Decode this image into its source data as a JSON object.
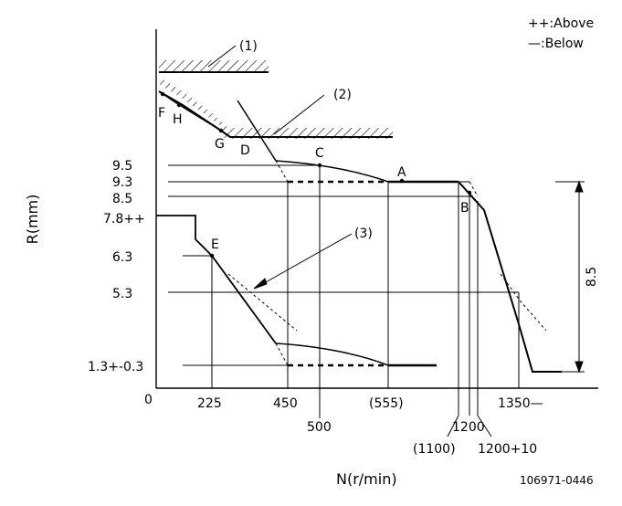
{
  "legend": {
    "above": "++:Above",
    "below": "—:Below"
  },
  "axes": {
    "y_title": "R(mm)",
    "x_title": "N(r/min)",
    "origin": "0"
  },
  "y_ticks": [
    "9.5",
    "9.3",
    "8.5",
    "7.8++",
    "6.3",
    "5.3",
    "1.3+-0.3"
  ],
  "x_ticks": [
    "225",
    "450",
    "500",
    "(555)",
    "1200",
    "(1100)",
    "1200+10",
    "1350—"
  ],
  "point_labels": [
    "F",
    "H",
    "G",
    "D",
    "C",
    "A",
    "B",
    "E"
  ],
  "callouts": [
    "(1)",
    "(2)",
    "(3)"
  ],
  "dimension": "8.5",
  "reference": "106971-0446"
}
